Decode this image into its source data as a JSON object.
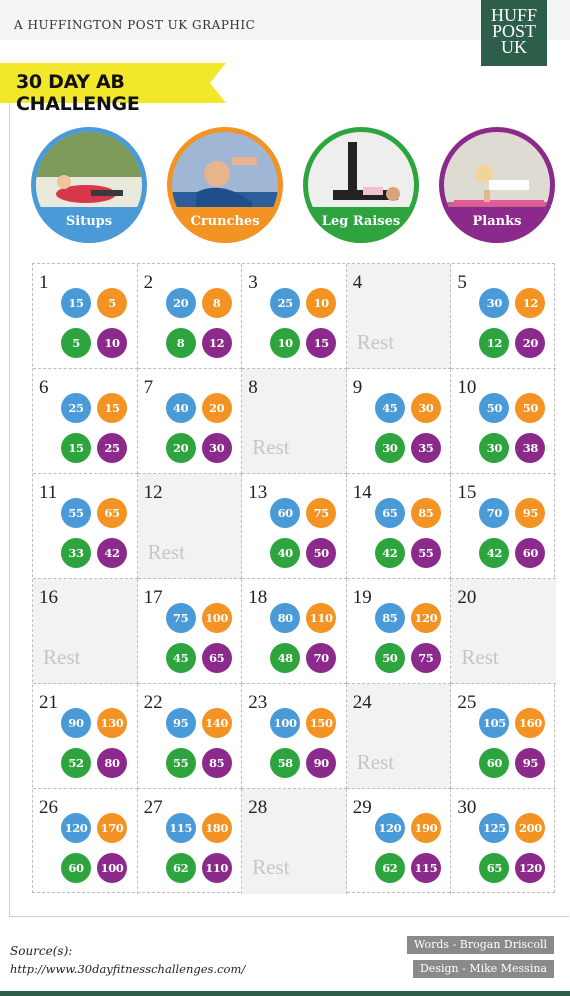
{
  "header": {
    "kicker": "A HUFFINGTON POST UK GRAPHIC",
    "logo": [
      "HUFF",
      "POST",
      "UK"
    ]
  },
  "title": "30 DAY AB CHALLENGE",
  "colors": {
    "situps": "#4a9ad8",
    "crunches": "#f39323",
    "leg_raises": "#2ea43f",
    "planks": "#8c2a8c",
    "banner": "#f2e72b",
    "logo": "#2c5e4a"
  },
  "exercises": [
    {
      "key": "situps",
      "label": "Situps",
      "color": "#4a9ad8"
    },
    {
      "key": "crunches",
      "label": "Crunches",
      "color": "#f39323"
    },
    {
      "key": "leg_raises",
      "label": "Leg Raises",
      "color": "#2ea43f"
    },
    {
      "key": "planks",
      "label": "Planks",
      "color": "#8c2a8c"
    }
  ],
  "rest_label": "Rest",
  "days": [
    {
      "day": "1",
      "reps": [
        "15",
        "5",
        "5",
        "10"
      ]
    },
    {
      "day": "2",
      "reps": [
        "20",
        "8",
        "8",
        "12"
      ]
    },
    {
      "day": "3",
      "reps": [
        "25",
        "10",
        "10",
        "15"
      ]
    },
    {
      "day": "4",
      "rest": true
    },
    {
      "day": "5",
      "reps": [
        "30",
        "12",
        "12",
        "20"
      ]
    },
    {
      "day": "6",
      "reps": [
        "25",
        "15",
        "15",
        "25"
      ]
    },
    {
      "day": "7",
      "reps": [
        "40",
        "20",
        "20",
        "30"
      ]
    },
    {
      "day": "8",
      "rest": true
    },
    {
      "day": "9",
      "reps": [
        "45",
        "30",
        "30",
        "35"
      ]
    },
    {
      "day": "10",
      "reps": [
        "50",
        "50",
        "30",
        "38"
      ]
    },
    {
      "day": "11",
      "reps": [
        "55",
        "65",
        "33",
        "42"
      ]
    },
    {
      "day": "12",
      "rest": true
    },
    {
      "day": "13",
      "reps": [
        "60",
        "75",
        "40",
        "50"
      ]
    },
    {
      "day": "14",
      "reps": [
        "65",
        "85",
        "42",
        "55"
      ]
    },
    {
      "day": "15",
      "reps": [
        "70",
        "95",
        "42",
        "60"
      ]
    },
    {
      "day": "16",
      "rest": true
    },
    {
      "day": "17",
      "reps": [
        "75",
        "100",
        "45",
        "65"
      ]
    },
    {
      "day": "18",
      "reps": [
        "80",
        "110",
        "48",
        "70"
      ]
    },
    {
      "day": "19",
      "reps": [
        "85",
        "120",
        "50",
        "75"
      ]
    },
    {
      "day": "20",
      "rest": true
    },
    {
      "day": "21",
      "reps": [
        "90",
        "130",
        "52",
        "80"
      ]
    },
    {
      "day": "22",
      "reps": [
        "95",
        "140",
        "55",
        "85"
      ]
    },
    {
      "day": "23",
      "reps": [
        "100",
        "150",
        "58",
        "90"
      ]
    },
    {
      "day": "24",
      "rest": true
    },
    {
      "day": "25",
      "reps": [
        "105",
        "160",
        "60",
        "95"
      ]
    },
    {
      "day": "26",
      "reps": [
        "120",
        "170",
        "60",
        "100"
      ]
    },
    {
      "day": "27",
      "reps": [
        "115",
        "180",
        "62",
        "110"
      ]
    },
    {
      "day": "28",
      "rest": true
    },
    {
      "day": "29",
      "reps": [
        "120",
        "190",
        "62",
        "115"
      ]
    },
    {
      "day": "30",
      "reps": [
        "125",
        "200",
        "65",
        "120"
      ]
    }
  ],
  "footer": {
    "source_label": "Source(s):",
    "source_url": "http://www.30dayfitnesschallenges.com/",
    "credits": [
      "Words - Brogan Driscoll",
      "Design - Mike Messina"
    ]
  }
}
